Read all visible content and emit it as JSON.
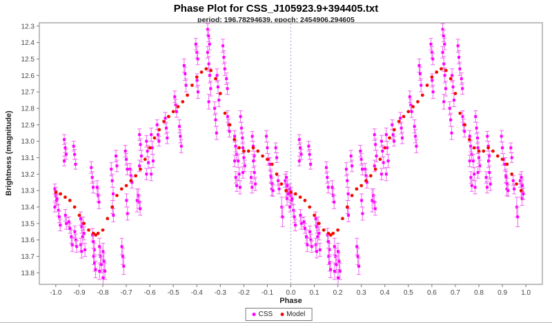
{
  "chart_data": {
    "type": "scatter",
    "title": "Phase Plot for CSS_J105923.9+394405.txt",
    "subtitle": "period: 196.78294639, epoch: 2454906.294605",
    "xlabel": "Phase",
    "ylabel": "Brightness (magnitude)",
    "x_ticks": [
      -1.0,
      -0.9,
      -0.8,
      -0.7,
      -0.6,
      -0.5,
      -0.4,
      -0.3,
      -0.2,
      -0.1,
      0.0,
      0.1,
      0.2,
      0.3,
      0.4,
      0.5,
      0.6,
      0.7,
      0.8,
      0.9,
      1.0
    ],
    "y_ticks": [
      12.3,
      12.4,
      12.5,
      12.6,
      12.7,
      12.8,
      12.9,
      13.0,
      13.1,
      13.2,
      13.3,
      13.4,
      13.5,
      13.6,
      13.7,
      13.8
    ],
    "xlim": [
      -1.07,
      1.07
    ],
    "ylim": [
      12.28,
      13.87
    ],
    "y_axis_inverted": true,
    "grid": false,
    "phase_zero_line": 0.0,
    "fold_note": "phase plot: every observation is drawn twice, at phase and at phase-1",
    "legend": [
      {
        "label": "CSS",
        "color": "#ff00ff",
        "marker": "square"
      },
      {
        "label": "Model",
        "color": "#ee0c00",
        "marker": "circle"
      }
    ],
    "colors": {
      "css_point": "#ff00ff",
      "css_error_bar": "#f163f1",
      "model_point": "#ee0c00",
      "plot_border": "#a3a3a3",
      "tick_mark": "#777777",
      "tick_label": "#464646",
      "zero_line": "#9a9ac8"
    },
    "css_format": "[phase, error, [magnitudes...]]",
    "css_clusters": [
      [
        0.0,
        0.03,
        [
          13.29,
          13.33,
          13.36,
          13.4
        ]
      ],
      [
        0.005,
        0.03,
        [
          13.31,
          13.35
        ]
      ],
      [
        0.015,
        0.035,
        [
          13.42,
          13.46,
          13.51
        ]
      ],
      [
        0.04,
        0.03,
        [
          12.99,
          13.04,
          13.08,
          13.12
        ]
      ],
      [
        0.045,
        0.035,
        [
          13.45,
          13.5
        ]
      ],
      [
        0.06,
        0.03,
        [
          13.49,
          13.53
        ]
      ],
      [
        0.07,
        0.04,
        [
          13.58,
          13.63
        ]
      ],
      [
        0.08,
        0.03,
        [
          13.03,
          13.08,
          13.14
        ]
      ],
      [
        0.085,
        0.035,
        [
          13.55,
          13.6,
          13.64
        ]
      ],
      [
        0.11,
        0.04,
        [
          13.47,
          13.52,
          13.58,
          13.63,
          13.67
        ]
      ],
      [
        0.12,
        0.04,
        [
          13.5,
          13.56,
          13.66
        ]
      ],
      [
        0.155,
        0.035,
        [
          13.16,
          13.22,
          13.28
        ]
      ],
      [
        0.16,
        0.04,
        [
          13.57,
          13.61,
          13.66
        ]
      ],
      [
        0.165,
        0.05,
        [
          13.7,
          13.74,
          13.78
        ]
      ],
      [
        0.18,
        0.04,
        [
          13.28,
          13.33,
          13.37
        ]
      ],
      [
        0.19,
        0.05,
        [
          13.64,
          13.7,
          13.75,
          13.79
        ]
      ],
      [
        0.205,
        0.05,
        [
          13.67,
          13.73,
          13.79,
          13.83
        ]
      ],
      [
        0.24,
        0.04,
        [
          13.17,
          13.24,
          13.32
        ]
      ],
      [
        0.245,
        0.04,
        [
          13.4,
          13.45
        ]
      ],
      [
        0.26,
        0.035,
        [
          13.09,
          13.15
        ]
      ],
      [
        0.285,
        0.05,
        [
          13.64,
          13.7,
          13.76
        ]
      ],
      [
        0.3,
        0.035,
        [
          13.06,
          13.11,
          13.17
        ]
      ],
      [
        0.305,
        0.04,
        [
          13.36,
          13.44
        ]
      ],
      [
        0.32,
        0.035,
        [
          13.17,
          13.21,
          13.25
        ]
      ],
      [
        0.35,
        0.07,
        [
          13.36
        ]
      ],
      [
        0.355,
        0.04,
        [
          13.33,
          13.37,
          13.41
        ]
      ],
      [
        0.36,
        0.035,
        [
          12.96,
          13.02,
          13.09,
          13.15
        ]
      ],
      [
        0.39,
        0.035,
        [
          13.0,
          13.06,
          13.13,
          13.2
        ]
      ],
      [
        0.41,
        0.04,
        [
          12.96,
          13.04,
          13.12,
          13.2
        ]
      ],
      [
        0.435,
        0.03,
        [
          12.9,
          12.96,
          13.0
        ]
      ],
      [
        0.47,
        0.035,
        [
          12.86,
          12.92,
          12.98
        ]
      ],
      [
        0.51,
        0.035,
        [
          12.73,
          12.78,
          12.82
        ]
      ],
      [
        0.53,
        0.04,
        [
          12.91,
          12.97,
          13.03
        ]
      ],
      [
        0.55,
        0.04,
        [
          12.54,
          12.59,
          12.66
        ]
      ],
      [
        0.6,
        0.035,
        [
          12.41,
          12.46,
          12.5
        ]
      ],
      [
        0.605,
        0.04,
        [
          12.63,
          12.7
        ]
      ],
      [
        0.65,
        0.035,
        [
          12.32,
          12.36,
          12.41,
          12.46
        ]
      ],
      [
        0.655,
        0.045,
        [
          12.53,
          12.6,
          12.68,
          12.76
        ]
      ],
      [
        0.68,
        0.04,
        [
          12.8,
          12.87,
          12.95
        ]
      ],
      [
        0.69,
        0.04,
        [
          12.6,
          12.67,
          12.75
        ]
      ],
      [
        0.715,
        0.04,
        [
          12.42,
          12.49,
          12.56
        ]
      ],
      [
        0.73,
        0.035,
        [
          12.62,
          12.68
        ]
      ],
      [
        0.735,
        0.035,
        [
          12.85,
          12.9,
          12.94
        ]
      ],
      [
        0.765,
        0.035,
        [
          12.97,
          13.03,
          13.08,
          13.12
        ]
      ],
      [
        0.77,
        0.035,
        [
          13.22,
          13.27
        ]
      ],
      [
        0.78,
        0.04,
        [
          13.12,
          13.2,
          13.28
        ]
      ],
      [
        0.79,
        0.035,
        [
          12.85,
          12.92,
          12.98
        ]
      ],
      [
        0.8,
        0.035,
        [
          13.04,
          13.1,
          13.15,
          13.19
        ]
      ],
      [
        0.835,
        0.035,
        [
          13.22,
          13.28
        ]
      ],
      [
        0.84,
        0.03,
        [
          12.97,
          13.03,
          13.09
        ]
      ],
      [
        0.845,
        0.04,
        [
          13.12,
          13.19,
          13.26
        ]
      ],
      [
        0.9,
        0.035,
        [
          12.97,
          13.04,
          13.11
        ]
      ],
      [
        0.915,
        0.04,
        [
          13.14,
          13.21,
          13.29
        ]
      ],
      [
        0.92,
        0.035,
        [
          13.22,
          13.26,
          13.3
        ]
      ],
      [
        0.94,
        0.03,
        [
          13.04,
          13.1
        ]
      ],
      [
        0.95,
        0.03,
        [
          13.24,
          13.29
        ]
      ],
      [
        0.965,
        0.06,
        [
          13.4,
          13.46
        ]
      ],
      [
        0.98,
        0.04,
        [
          13.24,
          13.3,
          13.35
        ]
      ],
      [
        0.985,
        0.035,
        [
          13.22,
          13.27,
          13.32
        ]
      ]
    ],
    "model_format": "[phase, magnitude]",
    "model_points": [
      [
        0.0,
        13.31
      ],
      [
        0.02,
        13.32
      ],
      [
        0.04,
        13.34
      ],
      [
        0.06,
        13.36
      ],
      [
        0.08,
        13.4
      ],
      [
        0.1,
        13.45
      ],
      [
        0.12,
        13.5
      ],
      [
        0.14,
        13.54
      ],
      [
        0.16,
        13.56
      ],
      [
        0.17,
        13.57
      ],
      [
        0.18,
        13.56
      ],
      [
        0.2,
        13.54
      ],
      [
        0.22,
        13.47
      ],
      [
        0.24,
        13.4
      ],
      [
        0.26,
        13.33
      ],
      [
        0.28,
        13.29
      ],
      [
        0.3,
        13.27
      ],
      [
        0.32,
        13.24
      ],
      [
        0.34,
        13.21
      ],
      [
        0.36,
        13.17
      ],
      [
        0.38,
        13.11
      ],
      [
        0.4,
        13.04
      ],
      [
        0.42,
        12.98
      ],
      [
        0.44,
        12.93
      ],
      [
        0.46,
        12.88
      ],
      [
        0.48,
        12.85
      ],
      [
        0.5,
        12.82
      ],
      [
        0.52,
        12.79
      ],
      [
        0.54,
        12.76
      ],
      [
        0.56,
        12.72
      ],
      [
        0.58,
        12.66
      ],
      [
        0.6,
        12.61
      ],
      [
        0.62,
        12.58
      ],
      [
        0.64,
        12.56
      ],
      [
        0.66,
        12.57
      ],
      [
        0.68,
        12.62
      ],
      [
        0.7,
        12.71
      ],
      [
        0.72,
        12.83
      ],
      [
        0.74,
        12.9
      ],
      [
        0.76,
        12.99
      ],
      [
        0.78,
        13.04
      ],
      [
        0.8,
        13.06
      ],
      [
        0.82,
        13.06
      ],
      [
        0.84,
        13.04
      ],
      [
        0.86,
        13.06
      ],
      [
        0.88,
        13.09
      ],
      [
        0.9,
        13.11
      ],
      [
        0.92,
        13.14
      ],
      [
        0.94,
        13.2
      ],
      [
        0.96,
        13.26
      ],
      [
        0.98,
        13.3
      ]
    ]
  }
}
